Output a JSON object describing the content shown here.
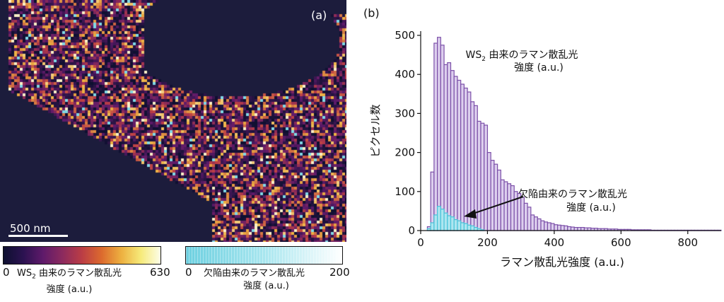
{
  "panel_a": {
    "label": "(a)",
    "scale_bar_label": "500 nm",
    "colorbars": [
      {
        "min_label": "0",
        "max_label": "630",
        "title_main": "WS",
        "title_sub": "2",
        "title_rest": " 由来のラマン散乱光",
        "title_line2": "強度 (a.u.)",
        "colors": [
          "#0e1030",
          "#5e1a6a",
          "#bb3d45",
          "#edb040",
          "#fcfde8"
        ]
      },
      {
        "min_label": "0",
        "max_label": "200",
        "title_main": "欠陥由来のラマン散乱光",
        "title_line2": "強度 (a.u.)",
        "colors": [
          "#6dd0e0",
          "#ffffff"
        ]
      }
    ]
  },
  "panel_b": {
    "label": "(b)"
  },
  "chart_data": {
    "type": "bar",
    "xlabel": "ラマン散乱光強度 (a.u.)",
    "ylabel": "ピクセル数",
    "xlim": [
      0,
      900
    ],
    "ylim": [
      0,
      500
    ],
    "xticks": [
      "0",
      "200",
      "400",
      "600",
      "800"
    ],
    "yticks": [
      "0",
      "100",
      "200",
      "300",
      "400",
      "500"
    ],
    "bin_width": 10,
    "series": [
      {
        "color": "#7b4fa8",
        "fill": "#ddcfee",
        "x": [
          20,
          30,
          40,
          50,
          60,
          70,
          80,
          90,
          100,
          110,
          120,
          130,
          140,
          150,
          160,
          170,
          180,
          190,
          200,
          210,
          220,
          230,
          240,
          250,
          260,
          270,
          280,
          290,
          300,
          310,
          320,
          330,
          340,
          350,
          360,
          370,
          380,
          390,
          400,
          410,
          420,
          430,
          440,
          450,
          460,
          470,
          480,
          490,
          500,
          510,
          520,
          530,
          540,
          550,
          560,
          570,
          580,
          590,
          600,
          610,
          620,
          630,
          640,
          650,
          660,
          670,
          680,
          690,
          700,
          710,
          720,
          730,
          740,
          750,
          760,
          770,
          780,
          790,
          800,
          810,
          820,
          830,
          840,
          850,
          860,
          870,
          880,
          890
        ],
        "values": [
          10,
          150,
          480,
          495,
          475,
          425,
          430,
          410,
          395,
          385,
          375,
          365,
          355,
          330,
          320,
          280,
          275,
          270,
          200,
          180,
          170,
          155,
          130,
          125,
          120,
          115,
          100,
          95,
          85,
          70,
          60,
          40,
          35,
          30,
          25,
          22,
          20,
          18,
          15,
          14,
          13,
          12,
          10,
          9,
          8,
          8,
          8,
          7,
          7,
          6,
          6,
          5,
          5,
          5,
          4,
          4,
          4,
          3,
          3,
          3,
          3,
          2,
          2,
          2,
          2,
          2,
          2,
          1,
          1,
          1,
          1,
          1,
          1,
          1,
          1,
          1,
          1,
          1,
          1,
          1,
          1,
          1,
          1,
          1,
          1,
          1,
          1,
          1
        ]
      },
      {
        "color": "#48c2d8",
        "fill": "#aee6f0",
        "x": [
          20,
          30,
          40,
          50,
          60,
          70,
          80,
          90,
          100,
          110,
          120,
          130,
          140,
          150,
          160,
          170,
          180
        ],
        "values": [
          5,
          20,
          40,
          62,
          55,
          45,
          38,
          35,
          28,
          25,
          20,
          18,
          14,
          12,
          8,
          5,
          2
        ]
      }
    ],
    "annotations": [
      {
        "text": "WS",
        "text_sub": "2",
        "text_rest": " 由来のラマン散乱光",
        "text_line2": "強度 (a.u.)"
      },
      {
        "text": "欠陥由来のラマン散乱光",
        "text_line2": "強度 (a.u.)"
      }
    ]
  }
}
